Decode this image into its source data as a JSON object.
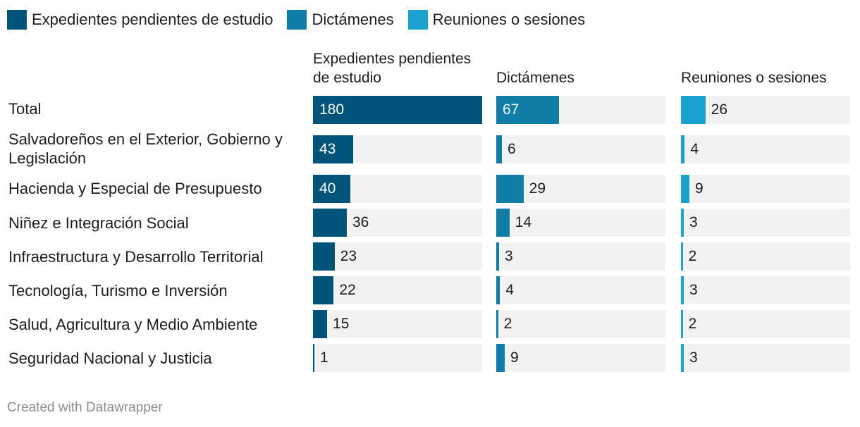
{
  "legend": [
    {
      "label": "Expedientes pendientes de estudio",
      "color": "#00547a"
    },
    {
      "label": "Dictámenes",
      "color": "#0e7ea8"
    },
    {
      "label": "Reuniones o sesiones",
      "color": "#1aa3d1"
    }
  ],
  "footer": "Created with Datawrapper",
  "chart_data": {
    "type": "bar",
    "categories": [
      "Total",
      "Salvadoreños en el Exterior, Gobierno y Legislación",
      "Hacienda y Especial de Presupuesto",
      "Niñez e Integración Social",
      "Infraestructura y Desarrollo Territorial",
      "Tecnología, Turismo e Inversión",
      "Salud, Agricultura y Medio Ambiente",
      "Seguridad Nacional y Justicia"
    ],
    "series": [
      {
        "name": "Expedientes pendientes de estudio",
        "color": "#00547a",
        "max": 180,
        "values": [
          180,
          43,
          40,
          36,
          23,
          22,
          15,
          1
        ]
      },
      {
        "name": "Dictámenes",
        "color": "#0e7ea8",
        "max": 180,
        "values": [
          67,
          6,
          29,
          14,
          3,
          4,
          2,
          9
        ]
      },
      {
        "name": "Reuniones o sesiones",
        "color": "#1aa3d1",
        "max": 180,
        "values": [
          26,
          4,
          9,
          3,
          2,
          3,
          2,
          3
        ]
      }
    ],
    "legend_position": "top-left"
  }
}
